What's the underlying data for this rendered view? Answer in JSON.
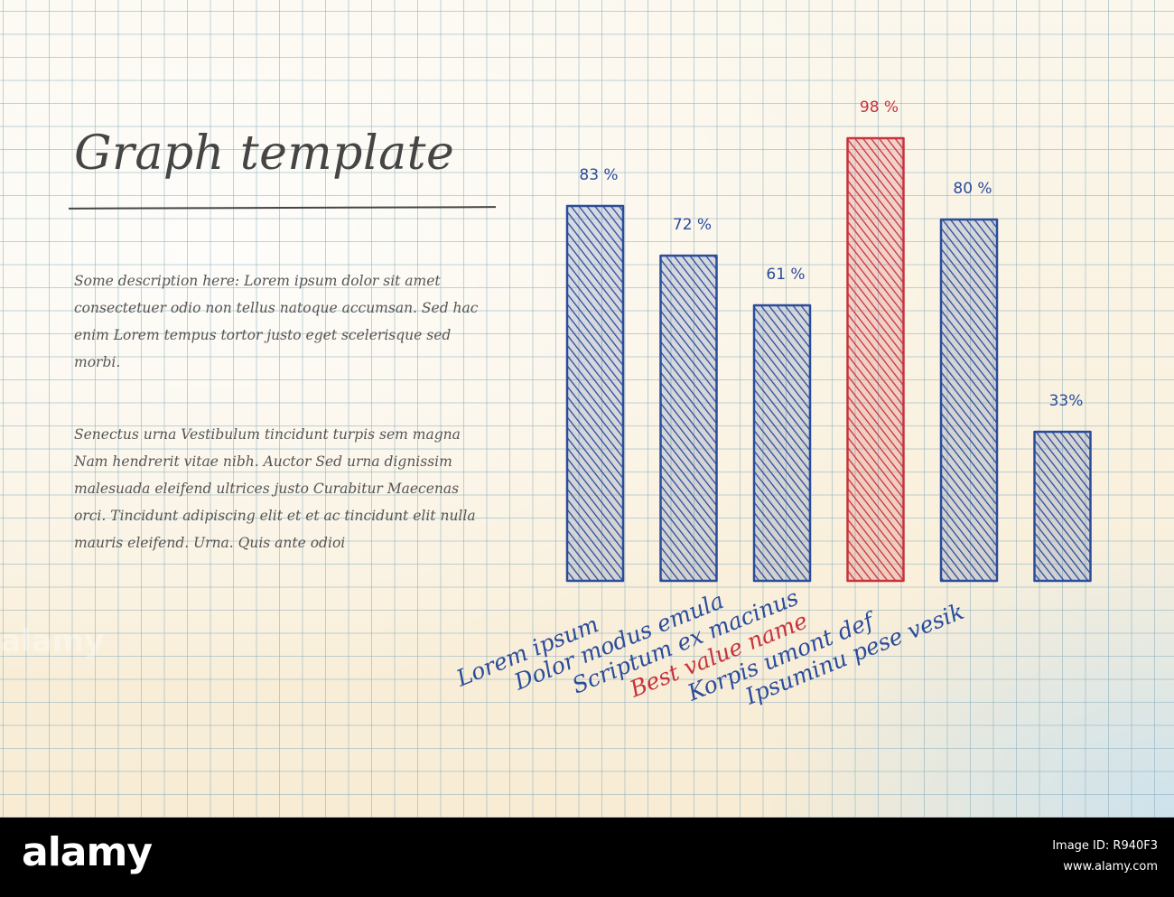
{
  "title": "Graph template",
  "paragraphs": [
    "Some description here: Lorem ipsum dolor sit amet consectetuer odio non tellus natoque accumsan. Sed hac enim Lorem tempus tortor justo eget scelerisque sed morbi.",
    "Senectus urna Vestibulum tincidunt turpis sem magna Nam hendrerit vitae nibh. Auctor Sed urna dignissim malesuada eleifend ultrices justo Curabitur Maecenas orci. Tincidunt adipiscing elit et et ac tincidunt elit nulla mauris eleifend. Urna. Quis ante odioi"
  ],
  "colors": {
    "normal": "#2a4c9c",
    "highlight": "#c7323c",
    "text": "#454545"
  },
  "chart_data": {
    "type": "bar",
    "categories": [
      "Lorem ipsum",
      "Dolor modus emula",
      "Scriptum ex macinus",
      "Best value name",
      "Korpis umont def",
      "Ipsuminu pese vesik"
    ],
    "values": [
      83,
      72,
      61,
      98,
      80,
      33
    ],
    "value_labels": [
      "83 %",
      "72 %",
      "61 %",
      "98 %",
      "80 %",
      "33%"
    ],
    "highlight_index": 3,
    "ylim": [
      0,
      100
    ],
    "grid": false
  },
  "watermark": {
    "logo": "alamy",
    "image_id": "Image ID: R940F3",
    "url": "www.alamy.com"
  }
}
